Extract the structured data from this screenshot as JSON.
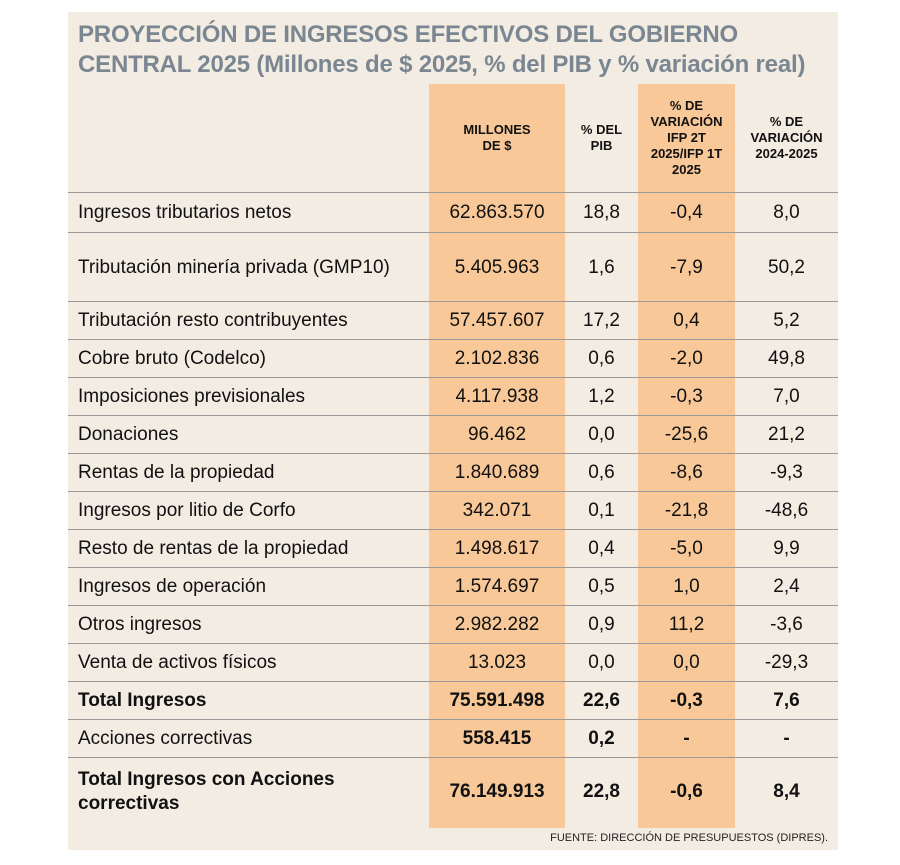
{
  "title": "PROYECCIÓN DE INGRESOS EFECTIVOS DEL GOBIERNO CENTRAL 2025 (Millones de $ 2025, % del PIB y % variación real)",
  "headers": {
    "millones": "MILLONES DE $",
    "pib": "% DEL PIB",
    "var_ifp": "% DE VARIACIÓN IFP 2T 2025/IFP 1T 2025",
    "var_anual": "% DE VARIACIÓN 2024-2025"
  },
  "rows": [
    {
      "label": "Ingresos tributarios netos",
      "millones": "62.863.570",
      "pib": "18,8",
      "var_ifp": "-0,4",
      "var_anual": "8,0"
    },
    {
      "label": "Tributación minería privada (GMP10)",
      "millones": "5.405.963",
      "pib": "1,6",
      "var_ifp": "-7,9",
      "var_anual": "50,2"
    },
    {
      "label": "Tributación resto contribuyentes",
      "millones": "57.457.607",
      "pib": "17,2",
      "var_ifp": "0,4",
      "var_anual": "5,2"
    },
    {
      "label": "Cobre bruto (Codelco)",
      "millones": "2.102.836",
      "pib": "0,6",
      "var_ifp": "-2,0",
      "var_anual": "49,8"
    },
    {
      "label": "Imposiciones previsionales",
      "millones": "4.117.938",
      "pib": "1,2",
      "var_ifp": "-0,3",
      "var_anual": "7,0"
    },
    {
      "label": "Donaciones",
      "millones": "96.462",
      "pib": "0,0",
      "var_ifp": "-25,6",
      "var_anual": "21,2"
    },
    {
      "label": "Rentas de la propiedad",
      "millones": "1.840.689",
      "pib": "0,6",
      "var_ifp": "-8,6",
      "var_anual": "-9,3"
    },
    {
      "label": "Ingresos por litio de Corfo",
      "millones": "342.071",
      "pib": "0,1",
      "var_ifp": "-21,8",
      "var_anual": "-48,6"
    },
    {
      "label": "Resto de rentas de la propiedad",
      "millones": "1.498.617",
      "pib": "0,4",
      "var_ifp": "-5,0",
      "var_anual": "9,9"
    },
    {
      "label": "Ingresos de operación",
      "millones": "1.574.697",
      "pib": "0,5",
      "var_ifp": "1,0",
      "var_anual": "2,4"
    },
    {
      "label": "Otros ingresos",
      "millones": "2.982.282",
      "pib": "0,9",
      "var_ifp": "11,2",
      "var_anual": "-3,6"
    },
    {
      "label": "Venta de activos físicos",
      "millones": "13.023",
      "pib": "0,0",
      "var_ifp": "0,0",
      "var_anual": "-29,3"
    },
    {
      "label": "Total Ingresos",
      "millones": "75.591.498",
      "pib": "22,6",
      "var_ifp": "-0,3",
      "var_anual": "7,6"
    },
    {
      "label": "Acciones correctivas",
      "millones": "558.415",
      "pib": "0,2",
      "var_ifp": "-",
      "var_anual": "-"
    },
    {
      "label": "Total Ingresos con Acciones correctivas",
      "millones": "76.149.913",
      "pib": "22,8",
      "var_ifp": "-0,6",
      "var_anual": "8,4"
    }
  ],
  "footer": "FUENTE: DIRECCIÓN DE PRESUPUESTOS (DIPRES)."
}
